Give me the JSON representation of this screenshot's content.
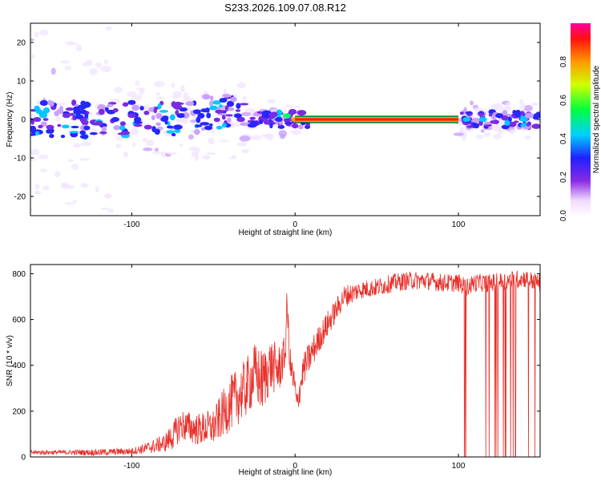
{
  "figure_title": "S233.2026.109.07.08.R12",
  "colors": {
    "line": "#e8302a",
    "frame": "#000000"
  },
  "chart_data": [
    {
      "type": "heatmap",
      "title": "S233.2026.109.07.08.R12",
      "xlabel": "Height of straight line (km)",
      "ylabel": "Frequency (Hz)",
      "xlim": [
        -162,
        150
      ],
      "ylim": [
        -25,
        25
      ],
      "xticks": [
        -100,
        0,
        100
      ],
      "yticks": [
        -20,
        -10,
        0,
        10,
        20
      ],
      "colorbar": {
        "label": "Normalized spectral amplitude",
        "range": [
          0,
          1
        ],
        "ticks": [
          "0.0",
          "0.2",
          "0.4",
          "0.6",
          "0.8"
        ]
      },
      "blobs": [
        {
          "x": -158,
          "f": 0,
          "a": 0.3
        },
        {
          "x": -150,
          "f": -2,
          "a": 0.35
        },
        {
          "x": -140,
          "f": 1,
          "a": 0.3
        },
        {
          "x": -130,
          "f": 2,
          "a": 0.45
        },
        {
          "x": -120,
          "f": -1,
          "a": 0.35
        },
        {
          "x": -110,
          "f": 0,
          "a": 0.4
        },
        {
          "x": -100,
          "f": 1,
          "a": 0.3
        },
        {
          "x": -90,
          "f": -2,
          "a": 0.35
        },
        {
          "x": -80,
          "f": 0,
          "a": 0.4
        },
        {
          "x": -70,
          "f": 1,
          "a": 0.45
        },
        {
          "x": -60,
          "f": 2,
          "a": 0.5
        },
        {
          "x": -50,
          "f": 3,
          "a": 0.55
        },
        {
          "x": -44,
          "f": 5,
          "a": 0.45
        },
        {
          "x": -35,
          "f": 1,
          "a": 0.4
        },
        {
          "x": -25,
          "f": -1,
          "a": 0.5
        },
        {
          "x": -18,
          "f": 1,
          "a": 0.45
        },
        {
          "x": -10,
          "f": 0,
          "a": 0.5
        },
        {
          "x": -5,
          "f": 1,
          "a": 0.65
        },
        {
          "x": 0,
          "f": 0,
          "a": 0.85
        },
        {
          "x": 105,
          "f": 0,
          "a": 0.55
        },
        {
          "x": 115,
          "f": 0,
          "a": 0.6
        },
        {
          "x": 125,
          "f": 1,
          "a": 0.5
        },
        {
          "x": 140,
          "f": 0,
          "a": 0.55
        }
      ],
      "ridge": {
        "x_start": 0,
        "x_end": 100,
        "f": 0,
        "amplitude": 0.95
      }
    },
    {
      "type": "line",
      "xlabel": "Height of straight line (km)",
      "ylabel": "SNR (10 * v/v)",
      "xlim": [
        -162,
        150
      ],
      "ylim": [
        0,
        840
      ],
      "xticks": [
        -100,
        0,
        100
      ],
      "yticks": [
        0,
        200,
        400,
        600,
        800
      ],
      "series": [
        {
          "name": "SNR",
          "x": [
            -162,
            -140,
            -120,
            -100,
            -90,
            -80,
            -75,
            -70,
            -60,
            -50,
            -40,
            -30,
            -25,
            -20,
            -15,
            -10,
            -6,
            -5,
            -3,
            0,
            1,
            5,
            10,
            15,
            20,
            25,
            30,
            40,
            50,
            60,
            70,
            80,
            90,
            100,
            105,
            110,
            120,
            130,
            140,
            150
          ],
          "y": [
            20,
            20,
            20,
            25,
            40,
            60,
            90,
            140,
            120,
            130,
            230,
            300,
            360,
            330,
            400,
            380,
            450,
            680,
            400,
            300,
            220,
            380,
            450,
            520,
            580,
            640,
            700,
            730,
            740,
            760,
            770,
            770,
            760,
            760,
            740,
            760,
            760,
            770,
            780,
            760
          ],
          "spread": [
            10,
            10,
            15,
            15,
            25,
            40,
            60,
            70,
            70,
            80,
            120,
            130,
            140,
            140,
            120,
            110,
            80,
            60,
            80,
            70,
            60,
            70,
            70,
            60,
            60,
            50,
            50,
            40,
            40,
            40,
            40,
            40,
            40,
            40,
            40,
            40,
            40,
            40,
            40,
            40
          ],
          "dropout_range": [
            103,
            150
          ]
        }
      ]
    }
  ]
}
